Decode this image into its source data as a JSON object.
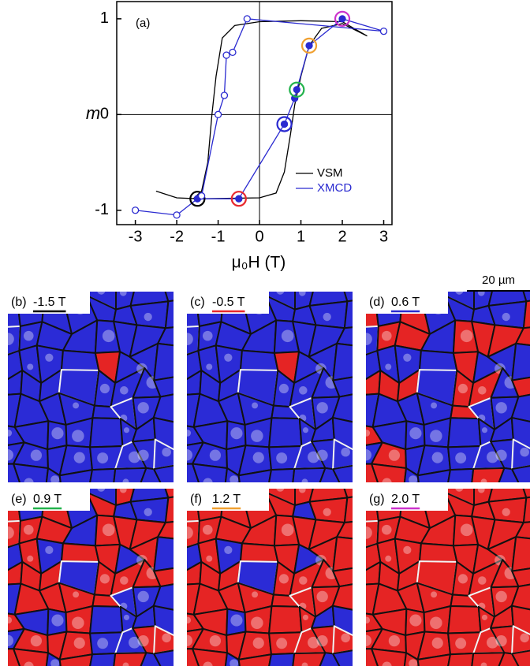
{
  "chart_data": {
    "type": "line",
    "annotation": "(a)",
    "x_label": "μ₀H (T)",
    "y_label": "m",
    "xlim": [
      -3.45,
      3.2
    ],
    "ylim": [
      -1.15,
      1.18
    ],
    "xticks": [
      -3,
      -2,
      -1,
      0,
      1,
      2,
      3
    ],
    "yticks": [
      -1,
      0,
      1
    ],
    "legend": "lower right",
    "series": [
      {
        "name": "VSM",
        "color": "#000000",
        "markers": false,
        "x": [
          -2.5,
          -2.0,
          -1.5,
          0,
          0.4,
          0.6,
          0.75,
          0.85,
          1.0,
          1.2,
          1.5,
          2.0,
          2.6,
          2.0,
          1.0,
          0,
          -0.6,
          -0.9,
          -1.05,
          -1.15,
          -1.25,
          -1.4,
          -1.6
        ],
        "values": [
          -0.8,
          -0.87,
          -0.88,
          -0.87,
          -0.82,
          -0.6,
          -0.2,
          0.1,
          0.4,
          0.72,
          0.9,
          0.95,
          0.82,
          0.97,
          0.98,
          0.97,
          0.93,
          0.8,
          0.4,
          0,
          -0.5,
          -0.8,
          -0.88
        ]
      },
      {
        "name": "XMCD",
        "color": "#2a2ad0",
        "markers": true,
        "x": [
          -3,
          -2,
          -1.5,
          -0.5,
          0.6,
          0.85,
          0.9,
          1.2,
          2.0,
          3,
          -0.3,
          -0.65,
          -0.8,
          -0.85,
          -1.0,
          -1.4
        ],
        "values": [
          -1.0,
          -1.05,
          -0.88,
          -0.88,
          -0.1,
          0.17,
          0.26,
          0.72,
          1.0,
          0.87,
          1.0,
          0.65,
          0.62,
          0.2,
          0.0,
          -0.85
        ],
        "filled": [
          false,
          false,
          true,
          true,
          true,
          true,
          true,
          true,
          true,
          false,
          false,
          false,
          false,
          false,
          false,
          false
        ],
        "ring_colors": [
          null,
          null,
          "#000000",
          "#e8282d",
          "#2a2ad0",
          null,
          "#22b24c",
          "#f0a030",
          "#cc33cc",
          null,
          null,
          null,
          null,
          null,
          null,
          null
        ]
      }
    ]
  },
  "scale_bar": "20 µm",
  "panels": [
    {
      "label": "(b)",
      "field": "-1.5 T",
      "color": "#000000"
    },
    {
      "label": "(c)",
      "field": "-0.5 T",
      "color": "#e8282d"
    },
    {
      "label": "(d)",
      "field": "0.6 T",
      "color": "#2a2ad0"
    },
    {
      "label": "(e)",
      "field": "0.9 T",
      "color": "#22b24c"
    },
    {
      "label": "(f)",
      "field": "1.2 T",
      "color": "#f0a030"
    },
    {
      "label": "(g)",
      "field": "2.0 T",
      "color": "#cc33cc"
    }
  ]
}
